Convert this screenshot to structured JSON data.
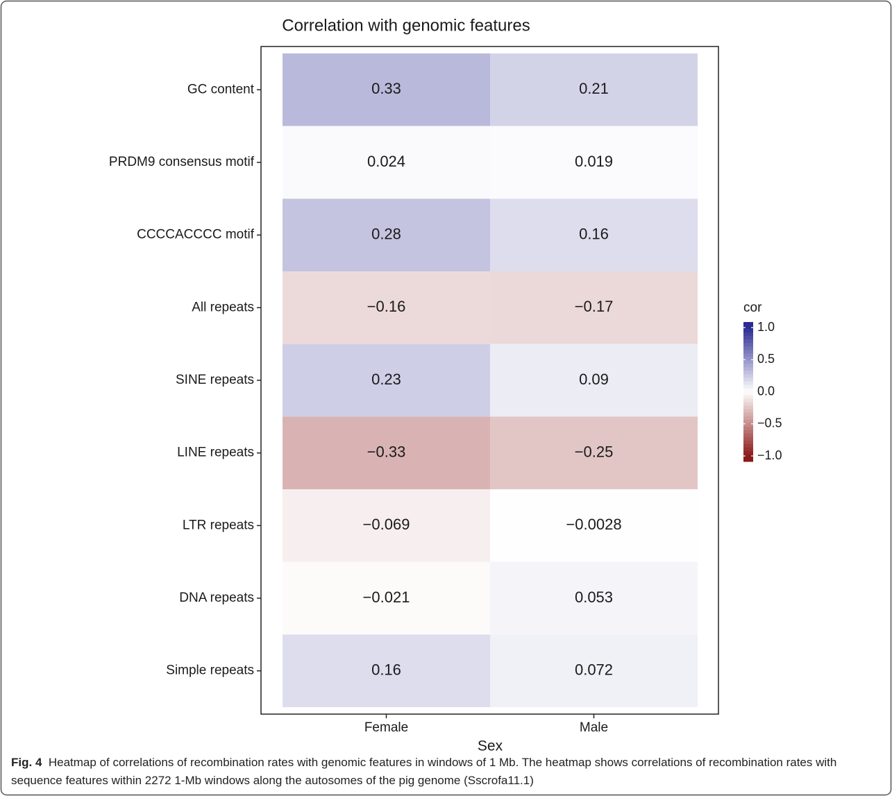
{
  "chart_data": {
    "type": "heatmap",
    "title": "Correlation with genomic features",
    "x_label": "Sex",
    "x_categories": [
      "Female",
      "Male"
    ],
    "y_categories": [
      "GC content",
      "PRDM9 consensus motif",
      "CCCCACCCC motif",
      "All repeats",
      "SINE repeats",
      "LINE repeats",
      "LTR repeats",
      "DNA repeats",
      "Simple repeats"
    ],
    "values": [
      [
        0.33,
        0.21
      ],
      [
        0.024,
        0.019
      ],
      [
        0.28,
        0.16
      ],
      [
        -0.16,
        -0.17
      ],
      [
        0.23,
        0.09
      ],
      [
        -0.33,
        -0.25
      ],
      [
        -0.069,
        -0.0028
      ],
      [
        -0.021,
        0.053
      ],
      [
        0.16,
        0.072
      ]
    ],
    "value_labels": [
      [
        "0.33",
        "0.21"
      ],
      [
        "0.024",
        "0.019"
      ],
      [
        "0.28",
        "0.16"
      ],
      [
        "−0.16",
        "−0.17"
      ],
      [
        "0.23",
        "0.09"
      ],
      [
        "−0.33",
        "−0.25"
      ],
      [
        "−0.069",
        "−0.0028"
      ],
      [
        "−0.021",
        "0.053"
      ],
      [
        "0.16",
        "0.072"
      ]
    ],
    "legend_title": "cor",
    "clim": [
      -1,
      1
    ],
    "cticks": [
      {
        "value": 1,
        "label": "1.0"
      },
      {
        "value": 0.5,
        "label": "0.5"
      },
      {
        "value": 0,
        "label": "0.0"
      },
      {
        "value": -0.5,
        "label": "−0.5"
      },
      {
        "value": -1,
        "label": "−1.0"
      }
    ],
    "colors": {
      "low": "#8b1a1a",
      "mid": "#ffffff",
      "high": "#2c2c92"
    }
  },
  "caption": {
    "label": "Fig. 4",
    "text": "Heatmap of correlations of recombination rates with genomic features in windows of 1 Mb. The heatmap shows correlations of recombination rates with sequence features within 2272 1-Mb windows along the autosomes of the pig genome (Sscrofa11.1)"
  }
}
